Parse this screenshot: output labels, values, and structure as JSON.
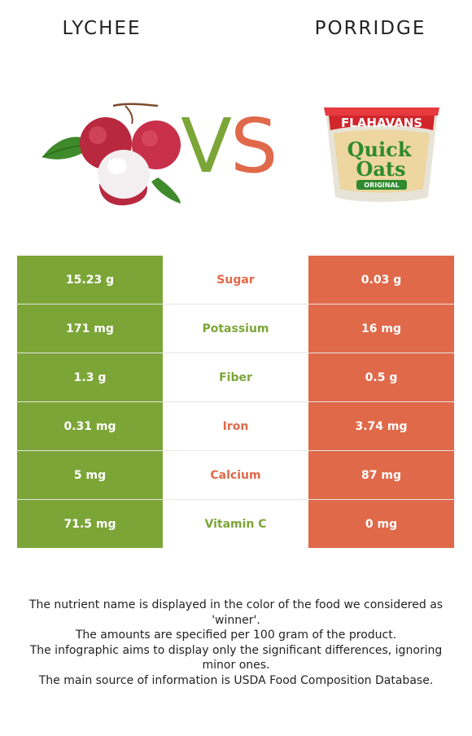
{
  "left_food": {
    "name": "LYCHEE",
    "color": "#7ca537"
  },
  "right_food": {
    "name": "PORRIDGE",
    "color": "#e0694a"
  },
  "vs": {
    "v": "V",
    "s": "S"
  },
  "product_label": {
    "brand": "FLAHAVANS",
    "line1": "Quick",
    "line2": "Oats",
    "variant": "ORIGINAL"
  },
  "rows": [
    {
      "left": "15.23 g",
      "nutrient": "Sugar",
      "right": "0.03 g",
      "winner": "right"
    },
    {
      "left": "171 mg",
      "nutrient": "Potassium",
      "right": "16 mg",
      "winner": "left"
    },
    {
      "left": "1.3 g",
      "nutrient": "Fiber",
      "right": "0.5 g",
      "winner": "left"
    },
    {
      "left": "0.31 mg",
      "nutrient": "Iron",
      "right": "3.74 mg",
      "winner": "right"
    },
    {
      "left": "5 mg",
      "nutrient": "Calcium",
      "right": "87 mg",
      "winner": "right"
    },
    {
      "left": "71.5 mg",
      "nutrient": "Vitamin C",
      "right": "0 mg",
      "winner": "left"
    }
  ],
  "notes": [
    "The nutrient name is displayed in the color of the food we considered as 'winner'.",
    "The amounts are specified per 100 gram of the product.",
    "The infographic aims to display only the significant differences, ignoring minor ones.",
    "The main source of information is USDA Food Composition Database."
  ]
}
